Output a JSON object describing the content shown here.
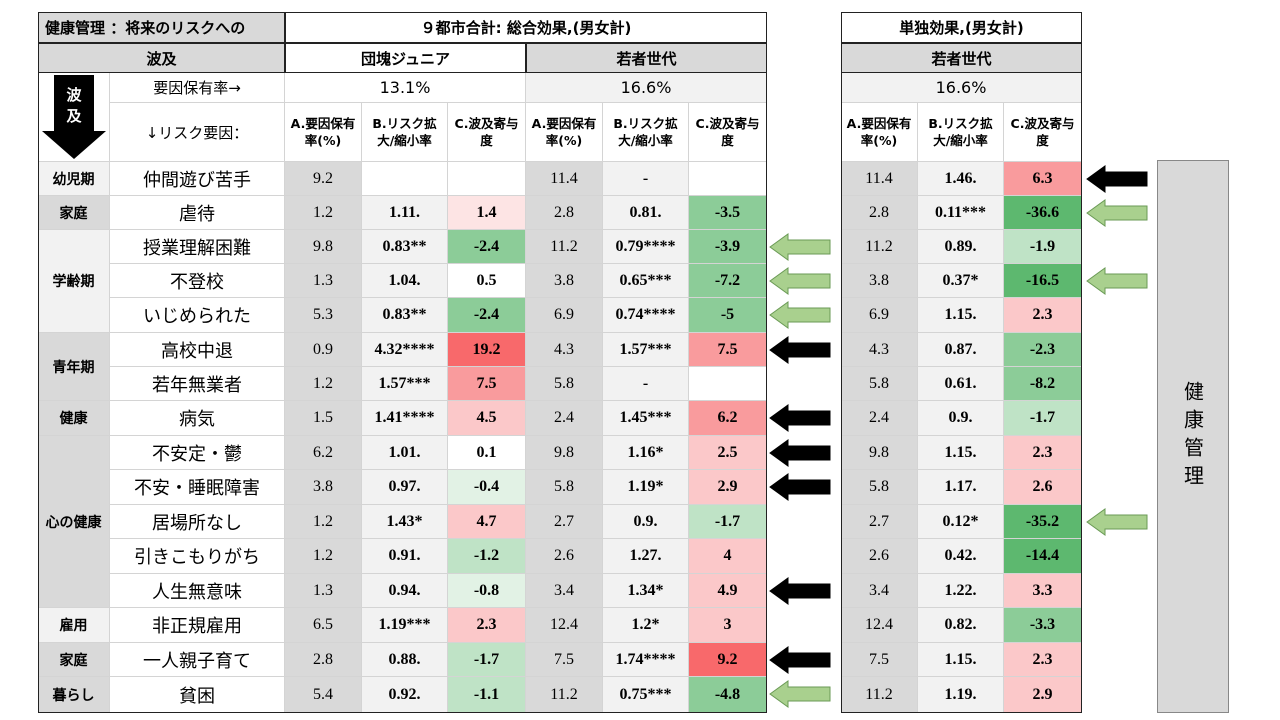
{
  "header": {
    "title_line1": "健康管理 ：将来のリスクへの",
    "title_line2": "波及",
    "total_effect": "９都市合計: 総合効果,(男女計)",
    "single_effect": "単独効果,(男女計)",
    "group_dankai": "団塊ジュニア",
    "group_young": "若者世代",
    "group_young_single": "若者世代",
    "rate_label": "要因保有率→",
    "risk_label": "↓リスク要因：",
    "wave_arrow_text": "波及",
    "rate_dankai": "13.1%",
    "rate_young": "16.6%",
    "rate_young_single": "16.6%",
    "col_a": "A.要因保有率(%)",
    "col_b": "B.リスク拡大/縮小率",
    "col_c": "C.波及寄与度",
    "side_label": "健康管理"
  },
  "categories": [
    {
      "label": "幼児期"
    },
    {
      "label": "家庭"
    },
    {
      "label": "学齢期"
    },
    {
      "label": "青年期"
    },
    {
      "label": "健康"
    },
    {
      "label": "心の健康"
    },
    {
      "label": "雇用"
    },
    {
      "label": "家庭"
    },
    {
      "label": "暮らし"
    }
  ],
  "rows": [
    {
      "factor": "仲間遊び苦手",
      "d": [
        "9.2",
        "",
        ""
      ],
      "y": [
        "11.4",
        "-",
        ""
      ],
      "s": [
        "11.4",
        "1.46.",
        "6.3"
      ]
    },
    {
      "factor": "虐待",
      "d": [
        "1.2",
        "1.11.",
        "1.4"
      ],
      "y": [
        "2.8",
        "0.81.",
        "-3.5"
      ],
      "s": [
        "2.8",
        "0.11***",
        "-36.6"
      ]
    },
    {
      "factor": "授業理解困難",
      "d": [
        "9.8",
        "0.83**",
        "-2.4"
      ],
      "y": [
        "11.2",
        "0.79****",
        "-3.9"
      ],
      "s": [
        "11.2",
        "0.89.",
        "-1.9"
      ]
    },
    {
      "factor": "不登校",
      "d": [
        "1.3",
        "1.04.",
        "0.5"
      ],
      "y": [
        "3.8",
        "0.65***",
        "-7.2"
      ],
      "s": [
        "3.8",
        "0.37*",
        "-16.5"
      ]
    },
    {
      "factor": "いじめられた",
      "d": [
        "5.3",
        "0.83**",
        "-2.4"
      ],
      "y": [
        "6.9",
        "0.74****",
        "-5"
      ],
      "s": [
        "6.9",
        "1.15.",
        "2.3"
      ]
    },
    {
      "factor": "高校中退",
      "d": [
        "0.9",
        "4.32****",
        "19.2"
      ],
      "y": [
        "4.3",
        "1.57***",
        "7.5"
      ],
      "s": [
        "4.3",
        "0.87.",
        "-2.3"
      ]
    },
    {
      "factor": "若年無業者",
      "d": [
        "1.2",
        "1.57***",
        "7.5"
      ],
      "y": [
        "5.8",
        "-",
        ""
      ],
      "s": [
        "5.8",
        "0.61.",
        "-8.2"
      ]
    },
    {
      "factor": "病気",
      "d": [
        "1.5",
        "1.41****",
        "4.5"
      ],
      "y": [
        "2.4",
        "1.45***",
        "6.2"
      ],
      "s": [
        "2.4",
        "0.9.",
        "-1.7"
      ]
    },
    {
      "factor": "不安定・鬱",
      "d": [
        "6.2",
        "1.01.",
        "0.1"
      ],
      "y": [
        "9.8",
        "1.16*",
        "2.5"
      ],
      "s": [
        "9.8",
        "1.15.",
        "2.3"
      ]
    },
    {
      "factor": "不安・睡眠障害",
      "d": [
        "3.8",
        "0.97.",
        "-0.4"
      ],
      "y": [
        "5.8",
        "1.19*",
        "2.9"
      ],
      "s": [
        "5.8",
        "1.17.",
        "2.6"
      ]
    },
    {
      "factor": "居場所なし",
      "d": [
        "1.2",
        "1.43*",
        "4.7"
      ],
      "y": [
        "2.7",
        "0.9.",
        "-1.7"
      ],
      "s": [
        "2.7",
        "0.12*",
        "-35.2"
      ]
    },
    {
      "factor": "引きこもりがち",
      "d": [
        "1.2",
        "0.91.",
        "-1.2"
      ],
      "y": [
        "2.6",
        "1.27.",
        "4"
      ],
      "s": [
        "2.6",
        "0.42.",
        "-14.4"
      ]
    },
    {
      "factor": "人生無意味",
      "d": [
        "1.3",
        "0.94.",
        "-0.8"
      ],
      "y": [
        "3.4",
        "1.34*",
        "4.9"
      ],
      "s": [
        "3.4",
        "1.22.",
        "3.3"
      ]
    },
    {
      "factor": "非正規雇用",
      "d": [
        "6.5",
        "1.19***",
        "2.3"
      ],
      "y": [
        "12.4",
        "1.2*",
        "3"
      ],
      "s": [
        "12.4",
        "0.82.",
        "-3.3"
      ]
    },
    {
      "factor": "一人親子育て",
      "d": [
        "2.8",
        "0.88.",
        "-1.7"
      ],
      "y": [
        "7.5",
        "1.74****",
        "9.2"
      ],
      "s": [
        "7.5",
        "1.15.",
        "2.3"
      ]
    },
    {
      "factor": "貧困",
      "d": [
        "5.4",
        "0.92.",
        "-1.1"
      ],
      "y": [
        "11.2",
        "0.75***",
        "-4.8"
      ],
      "s": [
        "11.2",
        "1.19.",
        "2.9"
      ]
    }
  ],
  "colors": {
    "red_strong": "#f8696b",
    "red_mid": "#f99b9d",
    "red_light": "#fbc8c9",
    "red_pale": "#fde4e4",
    "green_strong": "#5db86f",
    "green_mid": "#8ccc98",
    "green_light": "#bfe3c6",
    "green_pale": "#e2f2e5",
    "gray": "#d9d9d9",
    "light": "#f2f2f2",
    "arrow_black": "#000000",
    "arrow_green": "#a9d08e"
  }
}
